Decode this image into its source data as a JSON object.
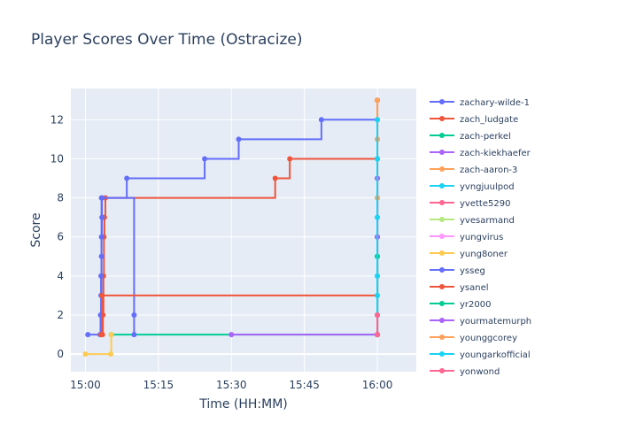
{
  "chart_data": {
    "type": "line",
    "title": "Player Scores Over Time (Ostracize)",
    "xlabel": "Time (HH:MM)",
    "ylabel": "Score",
    "x_unit": "minutes since 15:00",
    "xlim": [
      -3,
      68
    ],
    "ylim": [
      -0.9,
      13.6
    ],
    "x_ticks": [
      {
        "value": 0,
        "label": "15:00"
      },
      {
        "value": 15,
        "label": "15:15"
      },
      {
        "value": 30,
        "label": "15:30"
      },
      {
        "value": 45,
        "label": "15:45"
      },
      {
        "value": 60,
        "label": "16:00"
      }
    ],
    "y_ticks": [
      0,
      2,
      4,
      6,
      8,
      10,
      12
    ],
    "grid": true,
    "line_shape": "step",
    "legend_position": "right",
    "series": [
      {
        "name": "zachary-wilde-1",
        "color": "#636efa",
        "points": [
          [
            0.5,
            1
          ],
          [
            3.2,
            1
          ],
          [
            3.3,
            8
          ],
          [
            8.5,
            9
          ],
          [
            24.5,
            10
          ],
          [
            31.5,
            11
          ],
          [
            48.5,
            12
          ],
          [
            60,
            12
          ]
        ]
      },
      {
        "name": "zach_ludgate",
        "color": "#ef553b",
        "points": [
          [
            3.5,
            1
          ],
          [
            3.6,
            2
          ],
          [
            3.7,
            4
          ],
          [
            3.8,
            6
          ],
          [
            3.9,
            7
          ],
          [
            4.1,
            8
          ],
          [
            39,
            9
          ],
          [
            42,
            10
          ],
          [
            60,
            10
          ]
        ]
      },
      {
        "name": "zach-perkel",
        "color": "#00cc96",
        "points": [
          [
            5.3,
            1
          ],
          [
            60,
            1
          ],
          [
            60,
            2
          ],
          [
            60,
            5
          ]
        ]
      },
      {
        "name": "zach-kiekhaefer",
        "color": "#ab63fa",
        "points": [
          [
            30,
            1
          ],
          [
            60,
            1
          ],
          [
            60,
            6
          ],
          [
            60,
            9
          ]
        ]
      },
      {
        "name": "zach-aaron-3",
        "color": "#ffa15a",
        "points": [
          [
            60,
            11
          ],
          [
            60,
            13
          ]
        ]
      },
      {
        "name": "yvngjuulpod",
        "color": "#19d3f3",
        "points": [
          [
            60,
            2
          ],
          [
            60,
            10
          ]
        ]
      },
      {
        "name": "yvette5290",
        "color": "#ff6692",
        "points": [
          [
            60,
            1
          ],
          [
            60,
            6
          ]
        ]
      },
      {
        "name": "yvesarmand",
        "color": "#b6e880",
        "points": [
          [
            60,
            3
          ],
          [
            60,
            8
          ]
        ]
      },
      {
        "name": "yungvirus",
        "color": "#ff97ff",
        "points": [
          [
            60,
            4
          ],
          [
            60,
            7
          ]
        ]
      },
      {
        "name": "yung8oner",
        "color": "#fecb52",
        "points": [
          [
            0,
            0
          ],
          [
            5.2,
            0
          ],
          [
            5.3,
            1
          ]
        ]
      },
      {
        "name": "ysseg",
        "color": "#636efa",
        "points": [
          [
            3,
            1
          ],
          [
            3.1,
            2
          ],
          [
            3.2,
            3
          ],
          [
            3.2,
            4
          ],
          [
            3.3,
            5
          ],
          [
            3.3,
            6
          ],
          [
            3.4,
            7
          ],
          [
            3.4,
            8
          ],
          [
            10,
            1
          ],
          [
            10,
            2
          ]
        ]
      },
      {
        "name": "ysanel",
        "color": "#ef553b",
        "points": [
          [
            3.2,
            1
          ],
          [
            3.4,
            3
          ],
          [
            60,
            1
          ],
          [
            60,
            13
          ]
        ]
      },
      {
        "name": "yr2000",
        "color": "#00cc96",
        "points": [
          [
            60,
            1
          ],
          [
            60,
            5
          ]
        ]
      },
      {
        "name": "yourmatemurph",
        "color": "#ab63fa",
        "points": [
          [
            60,
            6
          ],
          [
            60,
            9
          ]
        ]
      },
      {
        "name": "younggcorey",
        "color": "#ffa15a",
        "points": [
          [
            60,
            8
          ],
          [
            60,
            11
          ],
          [
            60,
            13
          ]
        ]
      },
      {
        "name": "youngarkofficial",
        "color": "#19d3f3",
        "points": [
          [
            60,
            2
          ],
          [
            60,
            3
          ],
          [
            60,
            4
          ],
          [
            60,
            7
          ],
          [
            60,
            10
          ],
          [
            60,
            12
          ]
        ]
      },
      {
        "name": "yonwond",
        "color": "#ff6692",
        "points": [
          [
            60,
            1
          ],
          [
            60,
            2
          ]
        ]
      }
    ]
  }
}
